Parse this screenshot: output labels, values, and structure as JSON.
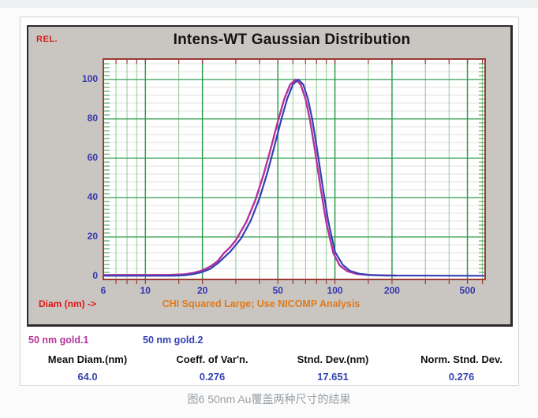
{
  "page": {
    "caption": "图6 50nm Au覆盖两种尺寸的结果"
  },
  "chart_data": {
    "type": "line",
    "title": "Intens-WT Gaussian Distribution",
    "ylabel": "REL.",
    "xlabel": "Diam (nm) ->",
    "annotation": "CHI Squared Large; Use NICOMP Analysis",
    "x_scale": "log",
    "xlim": [
      6,
      620
    ],
    "ylim": [
      0,
      110
    ],
    "x_tick_labels": [
      6,
      10,
      20,
      50,
      100,
      200,
      500
    ],
    "x_major_gridlines": [
      10,
      20,
      50,
      100,
      200,
      500
    ],
    "x_minor_gridlines": [
      7,
      8,
      9,
      15,
      30,
      40,
      60,
      70,
      80,
      90,
      150,
      300,
      400,
      600
    ],
    "y_tick_labels": [
      0,
      20,
      40,
      60,
      80,
      100
    ],
    "y_major_step": 20,
    "grid": true,
    "legend_position": "below-left",
    "colors": {
      "plot_border": "#9c3a34",
      "grid_major": "#2e9e4f",
      "grid_minor_vertical": "#8fc98f",
      "grid_fine_horizontal": "#e2e2e2",
      "axis_number": "#3434ae",
      "panel_background": "#c9c6c2"
    },
    "series": [
      {
        "name": "50 nm gold.1",
        "color": "#b5339a",
        "points": [
          [
            6,
            0.7
          ],
          [
            13,
            0.7
          ],
          [
            16,
            1
          ],
          [
            18,
            1.8
          ],
          [
            20,
            3
          ],
          [
            22,
            5
          ],
          [
            24,
            7.6
          ],
          [
            26,
            11.8
          ],
          [
            28,
            14.8
          ],
          [
            30,
            18.4
          ],
          [
            34,
            27.4
          ],
          [
            38,
            38.6
          ],
          [
            42,
            51.7
          ],
          [
            46,
            65.5
          ],
          [
            50,
            78.8
          ],
          [
            54,
            90
          ],
          [
            58,
            97.4
          ],
          [
            62,
            100
          ],
          [
            66,
            97.4
          ],
          [
            70,
            90
          ],
          [
            74,
            78.8
          ],
          [
            78,
            65.5
          ],
          [
            84,
            45
          ],
          [
            90,
            27.4
          ],
          [
            98,
            11.8
          ],
          [
            106,
            5.5
          ],
          [
            116,
            2.6
          ],
          [
            130,
            1.2
          ],
          [
            150,
            0.7
          ],
          [
            180,
            0.5
          ],
          [
            210,
            0.4
          ]
        ]
      },
      {
        "name": "50 nm gold.2",
        "color": "#3340b5",
        "points": [
          [
            6,
            0.3
          ],
          [
            14,
            0.3
          ],
          [
            16,
            0.5
          ],
          [
            18,
            1.2
          ],
          [
            20,
            2.2
          ],
          [
            22,
            3.8
          ],
          [
            24,
            6.5
          ],
          [
            28,
            12.5
          ],
          [
            32,
            19.3
          ],
          [
            36,
            28.4
          ],
          [
            40,
            39.7
          ],
          [
            44,
            52.6
          ],
          [
            48,
            66.3
          ],
          [
            52,
            79.4
          ],
          [
            56,
            90.2
          ],
          [
            60,
            97.5
          ],
          [
            64,
            100
          ],
          [
            68,
            97.5
          ],
          [
            72,
            90.2
          ],
          [
            76,
            79.4
          ],
          [
            80,
            66.3
          ],
          [
            86,
            46
          ],
          [
            92,
            28.4
          ],
          [
            100,
            12.5
          ],
          [
            110,
            5.8
          ],
          [
            120,
            2.8
          ],
          [
            135,
            1.3
          ],
          [
            155,
            0.7
          ],
          [
            185,
            0.4
          ],
          [
            620,
            0.3
          ]
        ]
      }
    ]
  },
  "results": {
    "columns": [
      {
        "label": "Mean Diam.(nm)",
        "value": "64.0"
      },
      {
        "label": "Coeff. of Var'n.",
        "value": "0.276"
      },
      {
        "label": "Stnd. Dev.(nm)",
        "value": "17.651"
      },
      {
        "label": "Norm. Stnd. Dev.",
        "value": "0.276"
      }
    ]
  }
}
